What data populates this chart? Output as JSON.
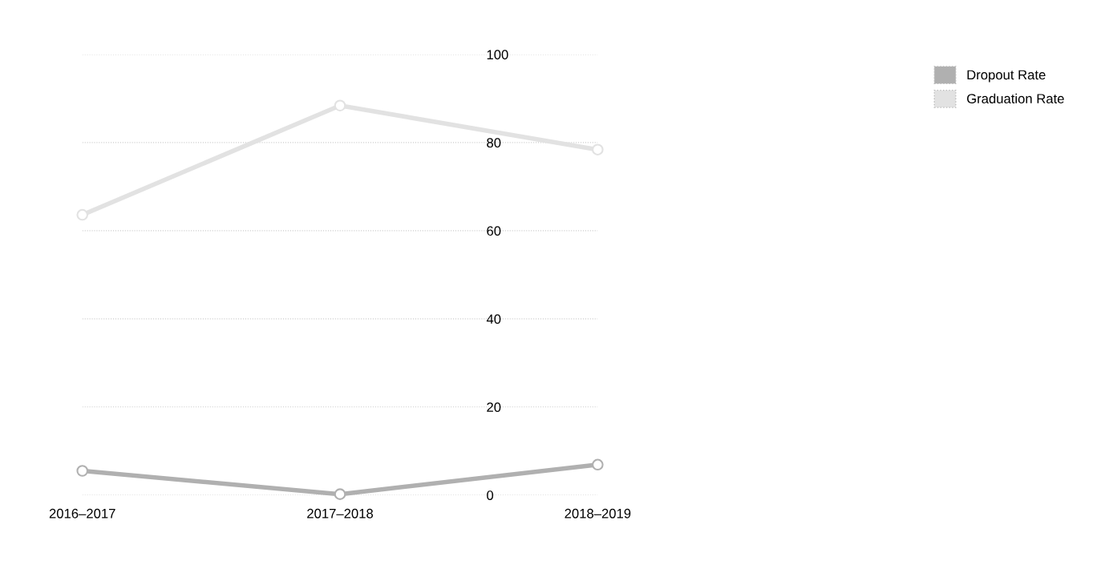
{
  "chart_data": {
    "type": "line",
    "categories": [
      "2016–2017",
      "2017–2018",
      "2018–2019"
    ],
    "series": [
      {
        "name": "Dropout Rate",
        "color": "#b0b0b0",
        "values": [
          5.5,
          0.2,
          6.9
        ]
      },
      {
        "name": "Graduation Rate",
        "color": "#e2e2e2",
        "values": [
          63.6,
          88.4,
          78.4
        ]
      }
    ],
    "ylim": [
      0,
      100
    ],
    "yticks": [
      0,
      20,
      40,
      60,
      80,
      100
    ],
    "grid": "y",
    "legend": "top right",
    "marker": "circle",
    "line_style": "solid"
  }
}
